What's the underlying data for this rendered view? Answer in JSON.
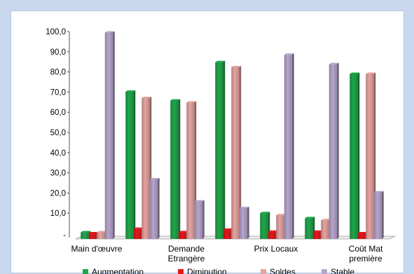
{
  "chart_data": {
    "type": "bar",
    "title": "",
    "xlabel": "",
    "ylabel": "",
    "ylim": [
      0,
      100
    ],
    "y_ticks": [
      "10,0",
      "20,0",
      "30,0",
      "40,0",
      "50,0",
      "60,0",
      "70,0",
      "80,0",
      "90,0",
      "100,0"
    ],
    "categories": [
      "Main d'œuvre",
      "",
      "Demande Etrangère",
      "",
      "Prix Locaux",
      "",
      "Coût Mat première"
    ],
    "category_labels": [
      [
        "Main d'œuvre"
      ],
      [],
      [
        "Demande",
        "Etrangère"
      ],
      [],
      [
        "Prix Locaux"
      ],
      [],
      [
        "Coût Mat",
        "première"
      ]
    ],
    "series": [
      {
        "name": "Augmentation",
        "color": "#1fa64a",
        "values": [
          0.5,
          70.2,
          65.8,
          84.8,
          10.0,
          7.5,
          79.0
        ]
      },
      {
        "name": "Diminution",
        "color": "#e3171b",
        "values": [
          0.0,
          2.2,
          0.5,
          1.8,
          0.8,
          0.8,
          0.0
        ]
      },
      {
        "name": "Soldes",
        "color": "#e5a3a0",
        "values": [
          0.5,
          67.0,
          64.8,
          82.3,
          9.0,
          6.5,
          79.0
        ]
      },
      {
        "name": "Stable",
        "color": "#b7a5cc",
        "values": [
          99.5,
          26.8,
          15.8,
          12.5,
          88.5,
          83.8,
          20.3
        ]
      }
    ],
    "grid": false,
    "legend_position": "bottom"
  }
}
